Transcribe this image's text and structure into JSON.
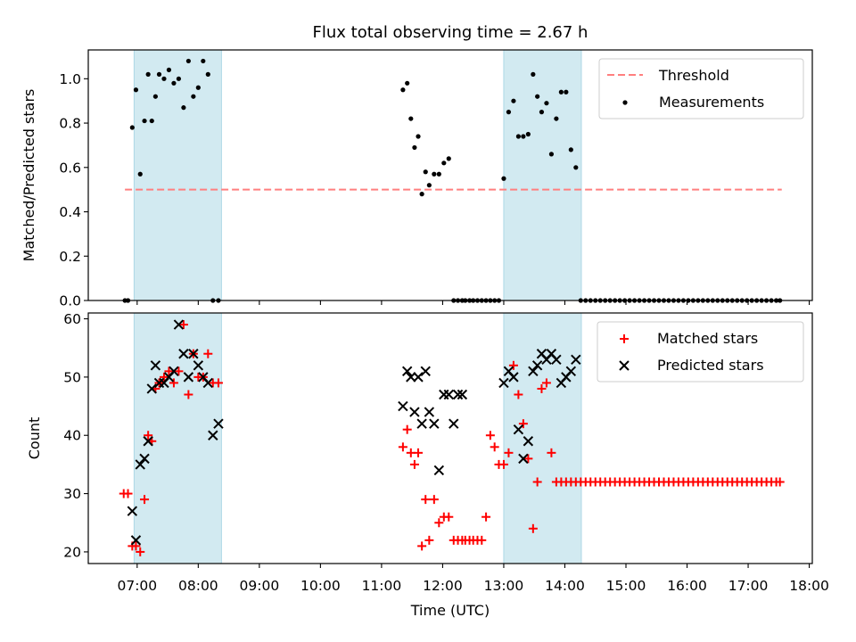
{
  "title": "Flux total observing time = 2.67 h",
  "colors": {
    "threshold": "#ff7f7f",
    "measurement": "#000000",
    "matched": "#ff0000",
    "predicted": "#000000",
    "observing_band": "#add8e6"
  },
  "chart_data": [
    {
      "type": "scatter",
      "panel": "top",
      "title": "Flux total observing time = 2.67 h",
      "xlabel": "",
      "ylabel": "Matched/Predicted stars",
      "xlim": [
        6.2,
        18.05
      ],
      "ylim": [
        0.0,
        1.13
      ],
      "yticks": [
        0.0,
        0.2,
        0.4,
        0.6,
        0.8,
        1.0
      ],
      "ytick_labels": [
        "0.0",
        "0.2",
        "0.4",
        "0.6",
        "0.8",
        "1.0"
      ],
      "xticks": [
        7,
        8,
        9,
        10,
        11,
        12,
        13,
        14,
        15,
        16,
        17,
        18
      ],
      "grid": false,
      "legend_position": "top-right",
      "shaded_intervals": [
        [
          6.95,
          8.38
        ],
        [
          13.0,
          14.27
        ]
      ],
      "threshold": {
        "name": "Threshold",
        "y": 0.5,
        "x_range": [
          6.8,
          17.55
        ]
      },
      "series": [
        {
          "name": "Measurements",
          "x": [
            6.8,
            6.85,
            6.92,
            6.98,
            7.05,
            7.12,
            7.18,
            7.24,
            7.3,
            7.36,
            7.44,
            7.52,
            7.6,
            7.68,
            7.76,
            7.84,
            7.92,
            8.0,
            8.08,
            8.16,
            8.24,
            8.33,
            11.35,
            11.42,
            11.48,
            11.54,
            11.6,
            11.66,
            11.72,
            11.78,
            11.86,
            11.94,
            12.02,
            12.1,
            12.18,
            12.25,
            12.32,
            12.37,
            12.44,
            12.5,
            12.57,
            12.64,
            12.71,
            12.78,
            12.85,
            12.92,
            13.0,
            13.08,
            13.16,
            13.24,
            13.32,
            13.4,
            13.48,
            13.55,
            13.62,
            13.7,
            13.78,
            13.86,
            13.94,
            14.02,
            14.1,
            14.18,
            14.26,
            14.34,
            14.42,
            14.5,
            14.58,
            14.66,
            14.74,
            14.82,
            14.9,
            14.98,
            15.06,
            15.14,
            15.22,
            15.3,
            15.38,
            15.46,
            15.54,
            15.62,
            15.7,
            15.78,
            15.86,
            15.94,
            16.02,
            16.1,
            16.18,
            16.26,
            16.34,
            16.42,
            16.5,
            16.58,
            16.66,
            16.74,
            16.82,
            16.9,
            16.98,
            17.06,
            17.14,
            17.22,
            17.3,
            17.38,
            17.46,
            17.52
          ],
          "y": [
            0.0,
            0.0,
            0.78,
            0.95,
            0.57,
            0.81,
            1.02,
            0.81,
            0.92,
            1.02,
            1.0,
            1.04,
            0.98,
            1.0,
            0.87,
            1.08,
            0.92,
            0.96,
            1.08,
            1.02,
            0.0,
            0.0,
            0.95,
            0.98,
            0.82,
            0.69,
            0.74,
            0.48,
            0.58,
            0.52,
            0.57,
            0.57,
            0.62,
            0.64,
            0.0,
            0.0,
            0.0,
            0.0,
            0.0,
            0.0,
            0.0,
            0.0,
            0.0,
            0.0,
            0.0,
            0.0,
            0.55,
            0.85,
            0.9,
            0.74,
            0.74,
            0.75,
            1.02,
            0.92,
            0.85,
            0.89,
            0.66,
            0.82,
            0.94,
            0.94,
            0.68,
            0.6,
            0.0,
            0.0,
            0.0,
            0.0,
            0.0,
            0.0,
            0.0,
            0.0,
            0.0,
            0.0,
            0.0,
            0.0,
            0.0,
            0.0,
            0.0,
            0.0,
            0.0,
            0.0,
            0.0,
            0.0,
            0.0,
            0.0,
            0.0,
            0.0,
            0.0,
            0.0,
            0.0,
            0.0,
            0.0,
            0.0,
            0.0,
            0.0,
            0.0,
            0.0,
            0.0,
            0.0,
            0.0,
            0.0,
            0.0,
            0.0,
            0.0,
            0.0
          ]
        }
      ],
      "legend": [
        "Threshold",
        "Measurements"
      ]
    },
    {
      "type": "scatter",
      "panel": "bottom",
      "xlabel": "Time (UTC)",
      "ylabel": "Count",
      "xlim": [
        6.2,
        18.05
      ],
      "ylim": [
        18.0,
        61.0
      ],
      "yticks": [
        20,
        30,
        40,
        50,
        60
      ],
      "ytick_labels": [
        "20",
        "30",
        "40",
        "50",
        "60"
      ],
      "xticks": [
        7,
        8,
        9,
        10,
        11,
        12,
        13,
        14,
        15,
        16,
        17,
        18
      ],
      "xtick_labels": [
        "07:00",
        "08:00",
        "09:00",
        "10:00",
        "11:00",
        "12:00",
        "13:00",
        "14:00",
        "15:00",
        "16:00",
        "17:00",
        "18:00"
      ],
      "grid": false,
      "legend_position": "top-right",
      "shaded_intervals": [
        [
          6.95,
          8.38
        ],
        [
          13.0,
          14.27
        ]
      ],
      "series": [
        {
          "name": "Matched stars",
          "marker": "plus",
          "x": [
            6.78,
            6.85,
            6.92,
            6.98,
            7.05,
            7.12,
            7.18,
            7.24,
            7.3,
            7.36,
            7.44,
            7.52,
            7.6,
            7.68,
            7.76,
            7.84,
            7.92,
            8.0,
            8.08,
            8.16,
            8.24,
            8.33,
            11.35,
            11.42,
            11.48,
            11.54,
            11.6,
            11.66,
            11.72,
            11.78,
            11.86,
            11.94,
            12.02,
            12.1,
            12.18,
            12.25,
            12.32,
            12.37,
            12.44,
            12.5,
            12.57,
            12.64,
            12.71,
            12.78,
            12.85,
            12.92,
            13.0,
            13.08,
            13.16,
            13.24,
            13.32,
            13.4,
            13.48,
            13.55,
            13.62,
            13.7,
            13.78,
            13.86,
            13.94,
            14.02,
            14.1,
            14.18,
            14.26,
            14.34,
            14.42,
            14.5,
            14.58,
            14.66,
            14.74,
            14.82,
            14.9,
            14.98,
            15.06,
            15.14,
            15.22,
            15.3,
            15.38,
            15.46,
            15.54,
            15.62,
            15.7,
            15.78,
            15.86,
            15.94,
            16.02,
            16.1,
            16.18,
            16.26,
            16.34,
            16.42,
            16.5,
            16.58,
            16.66,
            16.74,
            16.82,
            16.9,
            16.98,
            17.06,
            17.14,
            17.22,
            17.3,
            17.38,
            17.46,
            17.52
          ],
          "y": [
            30,
            30,
            21,
            21,
            20,
            29,
            40,
            39,
            48,
            49,
            50,
            51,
            49,
            51,
            59,
            47,
            54,
            50,
            50,
            54,
            49,
            49,
            38,
            41,
            37,
            35,
            37,
            21,
            29,
            22,
            29,
            25,
            26,
            26,
            22,
            22,
            22,
            22,
            22,
            22,
            22,
            22,
            26,
            40,
            38,
            35,
            35,
            37,
            52,
            47,
            42,
            36,
            24,
            32,
            48,
            49,
            37,
            32,
            32,
            32,
            32,
            32,
            32,
            32,
            32,
            32,
            32,
            32,
            32,
            32,
            32,
            32,
            32,
            32,
            32,
            32,
            32,
            32,
            32,
            32,
            32,
            32,
            32,
            32,
            32,
            32,
            32,
            32,
            32,
            32,
            32,
            32,
            32,
            32,
            32,
            32,
            32,
            32,
            32,
            32,
            32,
            32,
            32,
            32
          ]
        },
        {
          "name": "Predicted stars",
          "marker": "cross",
          "x": [
            6.92,
            6.98,
            7.05,
            7.12,
            7.18,
            7.24,
            7.3,
            7.36,
            7.44,
            7.52,
            7.6,
            7.68,
            7.76,
            7.84,
            7.92,
            8.0,
            8.08,
            8.16,
            8.24,
            8.33,
            11.35,
            11.42,
            11.48,
            11.54,
            11.6,
            11.66,
            11.72,
            11.78,
            11.86,
            11.94,
            12.02,
            12.1,
            12.18,
            12.25,
            12.32,
            13.0,
            13.08,
            13.16,
            13.24,
            13.32,
            13.4,
            13.48,
            13.55,
            13.62,
            13.7,
            13.78,
            13.86,
            13.94,
            14.02,
            14.1,
            14.18
          ],
          "y": [
            27,
            22,
            35,
            36,
            39,
            48,
            52,
            49,
            49,
            50,
            51,
            59,
            54,
            50,
            54,
            52,
            50,
            49,
            40,
            42,
            45,
            51,
            50,
            44,
            50,
            42,
            51,
            44,
            42,
            34,
            47,
            47,
            42,
            47,
            47,
            49,
            51,
            50,
            41,
            36,
            39,
            51,
            52,
            54,
            53,
            54,
            53,
            49,
            50,
            51,
            53
          ]
        }
      ],
      "legend": [
        "Matched stars",
        "Predicted stars"
      ]
    }
  ]
}
